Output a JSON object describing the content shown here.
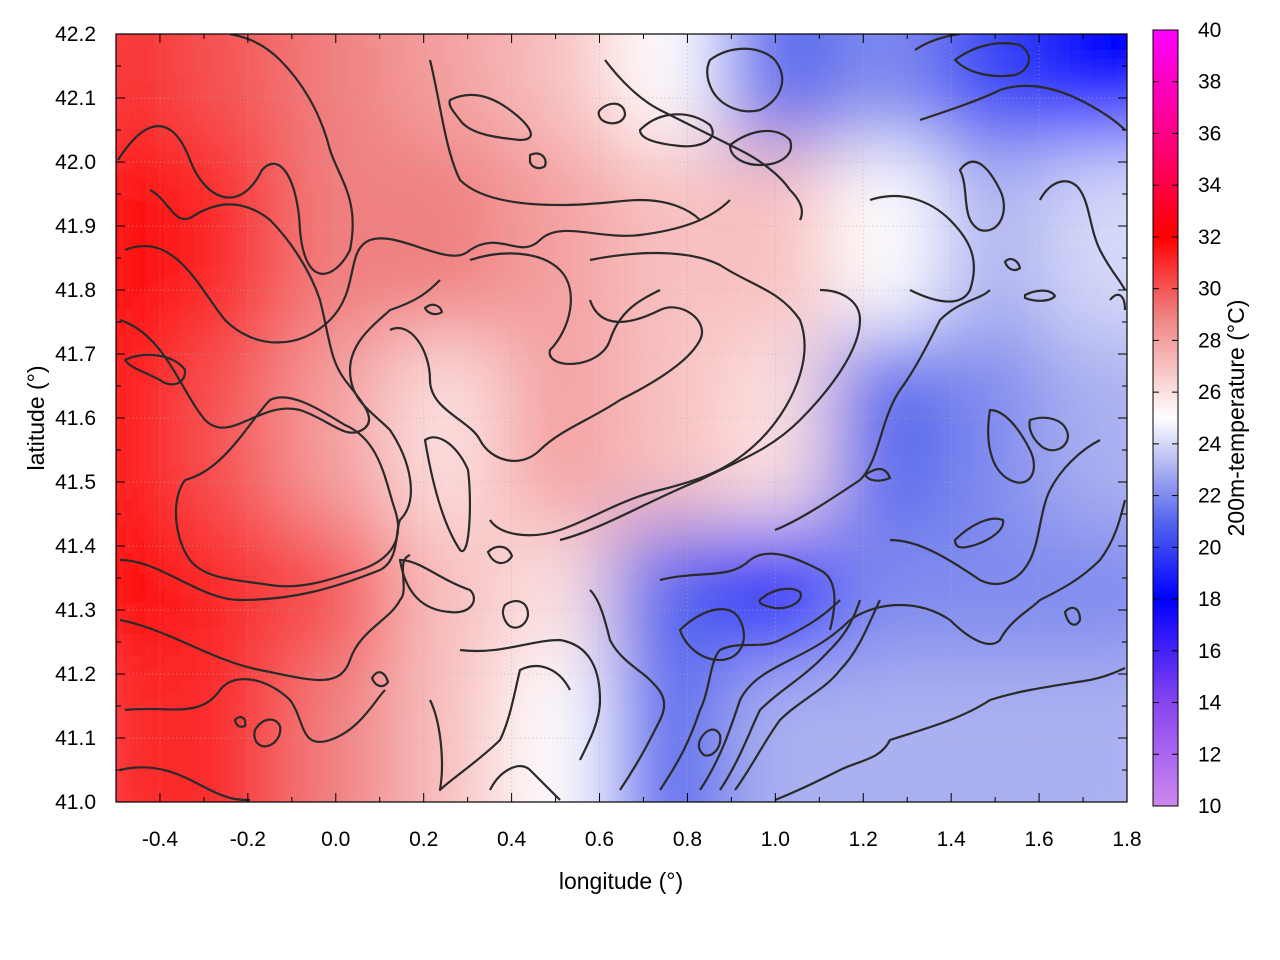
{
  "chart_data": {
    "type": "heatmap",
    "title": "",
    "xlabel": "longitude (°)",
    "ylabel": "latitude (°)",
    "colorbar_label": "200m-temperature (°C)",
    "xlim": [
      -0.5,
      1.8
    ],
    "ylim": [
      41.0,
      42.2
    ],
    "clim": [
      10,
      40
    ],
    "x_ticks": [
      -0.4,
      -0.2,
      0.0,
      0.2,
      0.4,
      0.6,
      0.8,
      1.0,
      1.2,
      1.4,
      1.6,
      1.8
    ],
    "x_tick_labels": [
      "-0.4",
      "-0.2",
      "0.0",
      "0.2",
      "0.4",
      "0.6",
      "0.8",
      "1.0",
      "1.2",
      "1.4",
      "1.6",
      "1.8"
    ],
    "y_ticks": [
      41.0,
      41.1,
      41.2,
      41.3,
      41.4,
      41.5,
      41.6,
      41.7,
      41.8,
      41.9,
      42.0,
      42.1,
      42.2
    ],
    "y_tick_labels": [
      "41.0",
      "41.1",
      "41.2",
      "41.3",
      "41.4",
      "41.5",
      "41.6",
      "41.7",
      "41.8",
      "41.9",
      "42.0",
      "42.1",
      "42.2"
    ],
    "colorbar_ticks": [
      10,
      12,
      14,
      16,
      18,
      20,
      22,
      24,
      26,
      28,
      30,
      32,
      34,
      36,
      38,
      40
    ],
    "colorbar_tick_labels": [
      "10",
      "12",
      "14",
      "16",
      "18",
      "20",
      "22",
      "24",
      "26",
      "28",
      "30",
      "32",
      "34",
      "36",
      "38",
      "40"
    ],
    "colormap": [
      {
        "value": 10,
        "color": "#cc88ee"
      },
      {
        "value": 14,
        "color": "#8844ee"
      },
      {
        "value": 18,
        "color": "#0000ff"
      },
      {
        "value": 21,
        "color": "#5566ee"
      },
      {
        "value": 23,
        "color": "#aab0f0"
      },
      {
        "value": 25,
        "color": "#ffffff"
      },
      {
        "value": 27,
        "color": "#f8c0c0"
      },
      {
        "value": 29,
        "color": "#f08080"
      },
      {
        "value": 32,
        "color": "#ff0000"
      },
      {
        "value": 36,
        "color": "#ff0088"
      },
      {
        "value": 40,
        "color": "#ff00ff"
      }
    ],
    "grid": true,
    "contours": true,
    "field_samples": {
      "x": [
        -0.45,
        -0.2,
        0.05,
        0.3,
        0.55,
        0.8,
        1.05,
        1.3,
        1.55,
        1.78
      ],
      "y": [
        42.15,
        41.85,
        41.55,
        41.25,
        41.05
      ],
      "values": [
        [
          31,
          30,
          29,
          28,
          27,
          25,
          21,
          22,
          20,
          18
        ],
        [
          32,
          31,
          29,
          29,
          28,
          27,
          27,
          25,
          23,
          24
        ],
        [
          32,
          30,
          28,
          26,
          28,
          27,
          26,
          21,
          22,
          23
        ],
        [
          32,
          31,
          30,
          27,
          26,
          21,
          19,
          22,
          22,
          22
        ],
        [
          31,
          31,
          29,
          27,
          25,
          21,
          23,
          23,
          23,
          23
        ]
      ]
    }
  }
}
